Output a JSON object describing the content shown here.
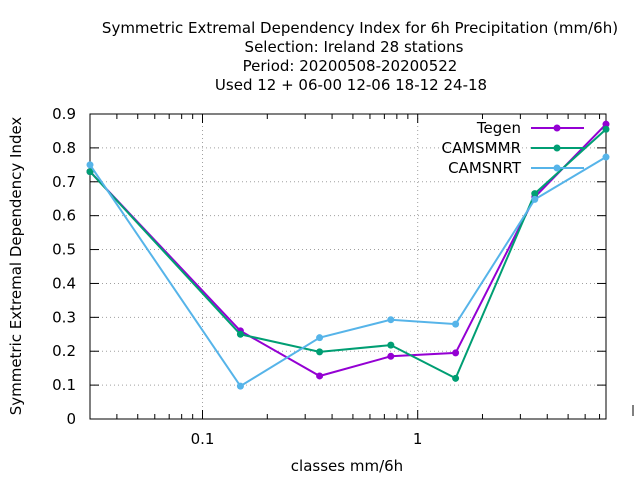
{
  "chart_data": {
    "type": "line",
    "title_lines": [
      "Symmetric Extremal Dependency Index  for 6h Precipitation (mm/6h)",
      "Selection: Ireland     28 stations",
      "Period: 20200508-20200522",
      "Used  12 + 06-00 12-06 18-12 24-18"
    ],
    "xlabel": "classes mm/6h",
    "ylabel": "Symmetric Extremal Dependency Index",
    "x_scale": "log",
    "xlim": [
      0.03,
      7.5
    ],
    "ylim": [
      0,
      0.9
    ],
    "x_ticks": [
      {
        "value": 0.1,
        "label": "0.1"
      },
      {
        "value": 1,
        "label": "1"
      }
    ],
    "y_ticks": [
      {
        "value": 0,
        "label": "0"
      },
      {
        "value": 0.1,
        "label": "0.1"
      },
      {
        "value": 0.2,
        "label": "0.2"
      },
      {
        "value": 0.3,
        "label": "0.3"
      },
      {
        "value": 0.4,
        "label": "0.4"
      },
      {
        "value": 0.5,
        "label": "0.5"
      },
      {
        "value": 0.6,
        "label": "0.6"
      },
      {
        "value": 0.7,
        "label": "0.7"
      },
      {
        "value": 0.8,
        "label": "0.8"
      },
      {
        "value": 0.9,
        "label": "0.9"
      }
    ],
    "grid": true,
    "legend_position": "top-right",
    "x": [
      0.03,
      0.15,
      0.35,
      0.75,
      1.5,
      3.5,
      7.5
    ],
    "series": [
      {
        "name": "Tegen",
        "color": "#9400d3",
        "values": [
          0.73,
          0.26,
          0.127,
          0.185,
          0.195,
          0.655,
          0.87
        ]
      },
      {
        "name": "CAMSMMR",
        "color": "#009e73",
        "values": [
          0.73,
          0.25,
          0.198,
          0.218,
          0.12,
          0.665,
          0.855
        ]
      },
      {
        "name": "CAMSNRT",
        "color": "#56b4e9",
        "values": [
          0.75,
          0.097,
          0.24,
          0.293,
          0.28,
          0.648,
          0.773
        ]
      }
    ]
  }
}
